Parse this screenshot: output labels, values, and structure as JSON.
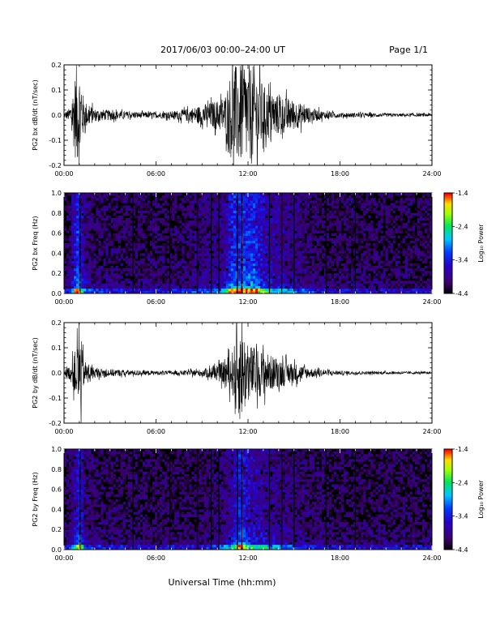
{
  "header": {
    "title": "2017/06/03  00:00–24:00 UT",
    "page": "Page 1/1"
  },
  "colors": {
    "trace": "#000000",
    "spectrogram_background": "#000000"
  },
  "chart_data": [
    {
      "type": "line",
      "ylabel": "PG2 bx dB/dt (nT/sec)",
      "ylim": [
        -0.2,
        0.2
      ],
      "yticks": [
        "-0.2",
        "-0.1",
        "0.0",
        "0.1",
        "0.2"
      ],
      "xticks": [
        "00:00",
        "06:00",
        "12:00",
        "18:00",
        "24:00"
      ],
      "xlim_hours": [
        0,
        24
      ],
      "envelope": {
        "hours": [
          0,
          0.4,
          0.8,
          1.0,
          1.3,
          2.0,
          3.0,
          4.0,
          5.0,
          6.0,
          7.0,
          8.0,
          9.0,
          10.0,
          10.5,
          11.0,
          11.5,
          12.0,
          12.5,
          13.0,
          13.5,
          14.0,
          14.5,
          15.0,
          15.5,
          16.0,
          17.0,
          18.0,
          20.0,
          22.0,
          24.0
        ],
        "amplitude": [
          0.01,
          0.03,
          0.2,
          0.2,
          0.06,
          0.025,
          0.02,
          0.015,
          0.012,
          0.012,
          0.015,
          0.025,
          0.04,
          0.06,
          0.08,
          0.2,
          0.2,
          0.2,
          0.2,
          0.12,
          0.09,
          0.08,
          0.07,
          0.06,
          0.045,
          0.03,
          0.015,
          0.01,
          0.008,
          0.006,
          0.006
        ]
      }
    },
    {
      "type": "heatmap",
      "ylabel": "PG2 bx Freq (Hz)",
      "ylim": [
        0.0,
        1.0
      ],
      "yticks": [
        "0.0",
        "0.2",
        "0.4",
        "0.6",
        "0.8",
        "1.0"
      ],
      "xticks": [
        "00:00",
        "06:00",
        "12:00",
        "18:00",
        "24:00"
      ],
      "colorbar": {
        "label": "Log₁₀ Power",
        "ticks": [
          "-1.4",
          "-2.4",
          "-3.4",
          "-4.4"
        ],
        "range": [
          -4.4,
          -1.4
        ]
      },
      "gap_hours": [
        1.05,
        4.5,
        6.9,
        8.7,
        9.6,
        10.1,
        11.3,
        11.6,
        13.4,
        14.2,
        15.0,
        17.1,
        19.0
      ]
    },
    {
      "type": "line",
      "ylabel": "PG2 by dB/dt (nT/sec)",
      "ylim": [
        -0.2,
        0.2
      ],
      "yticks": [
        "-0.2",
        "-0.1",
        "0.0",
        "0.1",
        "0.2"
      ],
      "xticks": [
        "00:00",
        "06:00",
        "12:00",
        "18:00",
        "24:00"
      ],
      "xlim_hours": [
        0,
        24
      ],
      "envelope": {
        "hours": [
          0,
          0.4,
          0.8,
          1.0,
          1.3,
          2.0,
          3.0,
          4.0,
          5.0,
          6.0,
          7.0,
          8.0,
          9.0,
          10.0,
          10.5,
          11.0,
          11.5,
          12.0,
          12.5,
          13.0,
          13.5,
          14.0,
          14.5,
          15.0,
          15.5,
          16.0,
          17.0,
          18.0,
          20.0,
          22.0,
          24.0
        ],
        "amplitude": [
          0.01,
          0.03,
          0.1,
          0.2,
          0.05,
          0.02,
          0.015,
          0.012,
          0.01,
          0.008,
          0.008,
          0.01,
          0.015,
          0.03,
          0.05,
          0.09,
          0.2,
          0.12,
          0.1,
          0.09,
          0.07,
          0.06,
          0.05,
          0.04,
          0.03,
          0.02,
          0.012,
          0.008,
          0.006,
          0.005,
          0.005
        ]
      }
    },
    {
      "type": "heatmap",
      "ylabel": "PG2 by Freq (Hz)",
      "ylim": [
        0.0,
        1.0
      ],
      "yticks": [
        "0.0",
        "0.2",
        "0.4",
        "0.6",
        "0.8",
        "1.0"
      ],
      "xticks": [
        "00:00",
        "06:00",
        "12:00",
        "18:00",
        "24:00"
      ],
      "colorbar": {
        "label": "Log₁₀ Power",
        "ticks": [
          "-1.4",
          "-2.4",
          "-3.4",
          "-4.4"
        ],
        "range": [
          -4.4,
          -1.4
        ]
      },
      "gap_hours": [
        1.05,
        4.5,
        6.9,
        8.7,
        9.6,
        10.1,
        11.3,
        11.6,
        13.4,
        14.2,
        15.0,
        17.1,
        19.0
      ]
    }
  ],
  "xlabel": "Universal Time (hh:mm)"
}
